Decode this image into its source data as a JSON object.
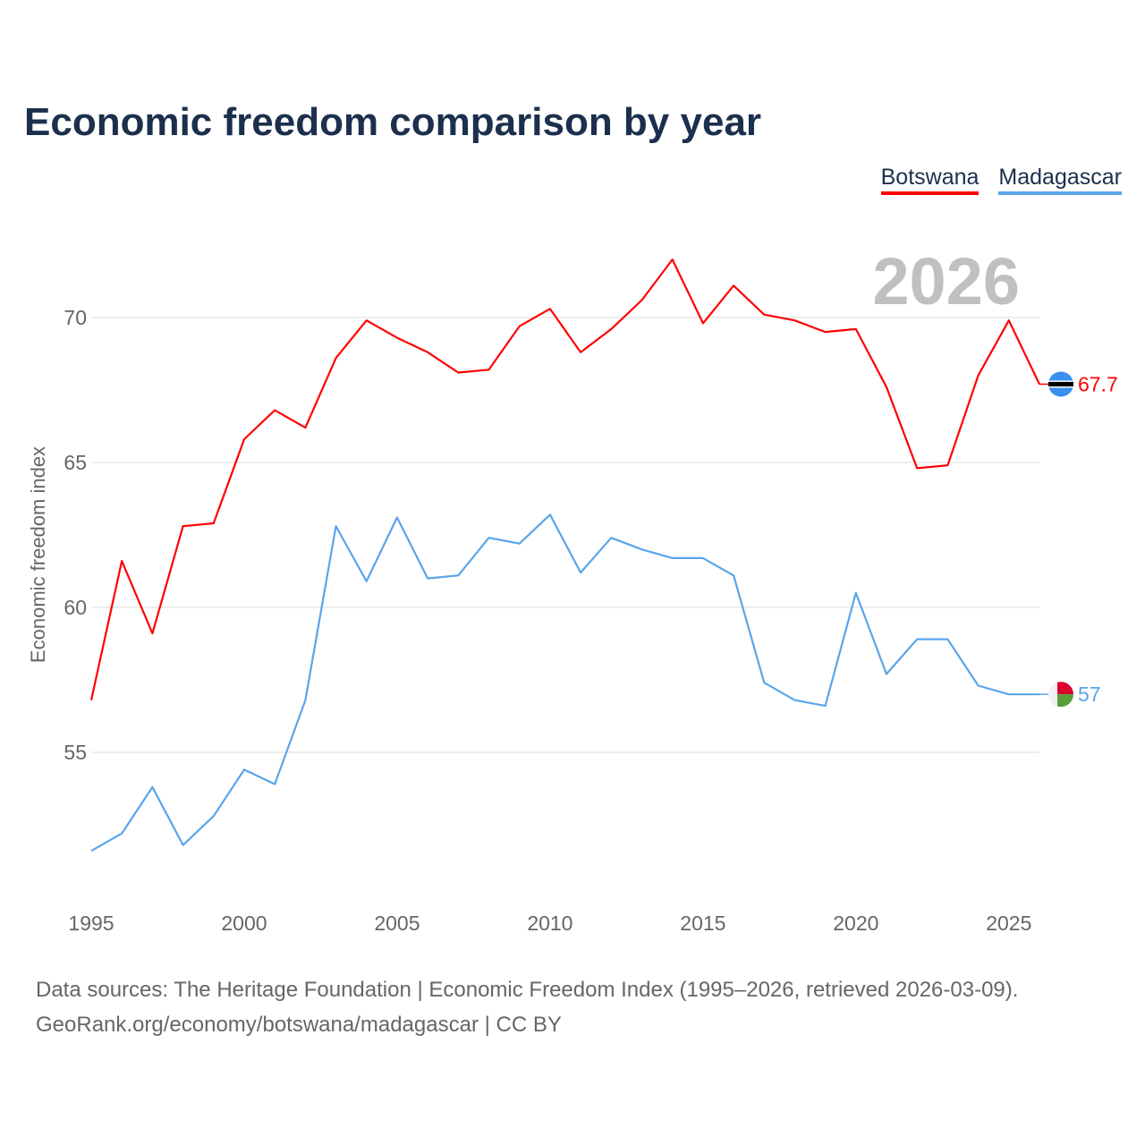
{
  "title": "Economic freedom comparison by year",
  "footer": {
    "line1": "Data sources: The Heritage Foundation | Economic Freedom Index (1995–2026, retrieved 2026-03-09).",
    "line2": "GeoRank.org/economy/botswana/madagascar | CC BY"
  },
  "chart_data": {
    "type": "line",
    "title": "Economic freedom comparison by year",
    "xlabel": "",
    "ylabel": "Economic freedom index",
    "year_watermark": "2026",
    "x": [
      1995,
      1996,
      1997,
      1998,
      1999,
      2000,
      2001,
      2002,
      2003,
      2004,
      2005,
      2006,
      2007,
      2008,
      2009,
      2010,
      2011,
      2012,
      2013,
      2014,
      2015,
      2016,
      2017,
      2018,
      2019,
      2020,
      2021,
      2022,
      2023,
      2024,
      2025,
      2026
    ],
    "xticks": [
      "1995",
      "2000",
      "2005",
      "2010",
      "2015",
      "2020",
      "2025"
    ],
    "yticks": [
      "55",
      "60",
      "65",
      "70"
    ],
    "xlim": [
      1995,
      2026
    ],
    "ylim": [
      50,
      73.3
    ],
    "grid": true,
    "legend_placement": "top-right",
    "series": [
      {
        "name": "Botswana",
        "color": "#ff0000",
        "end_label": "67.7",
        "values": [
          56.8,
          61.6,
          59.1,
          62.8,
          62.9,
          65.8,
          66.8,
          66.2,
          68.6,
          69.9,
          69.3,
          68.8,
          68.1,
          68.2,
          69.7,
          70.3,
          68.8,
          69.6,
          70.6,
          72.0,
          69.8,
          71.1,
          70.1,
          69.9,
          69.5,
          69.6,
          67.6,
          64.8,
          64.9,
          68.0,
          69.9,
          67.7
        ]
      },
      {
        "name": "Madagascar",
        "color": "#5aa5ea",
        "end_label": "57",
        "values": [
          51.6,
          52.2,
          53.8,
          51.8,
          52.8,
          54.4,
          53.9,
          56.8,
          62.8,
          60.9,
          63.1,
          61.0,
          61.1,
          62.4,
          62.2,
          63.2,
          61.2,
          62.4,
          62.0,
          61.7,
          61.7,
          61.1,
          57.4,
          56.8,
          56.6,
          60.5,
          57.7,
          58.9,
          58.9,
          57.3,
          57.0,
          57.0
        ]
      }
    ]
  }
}
